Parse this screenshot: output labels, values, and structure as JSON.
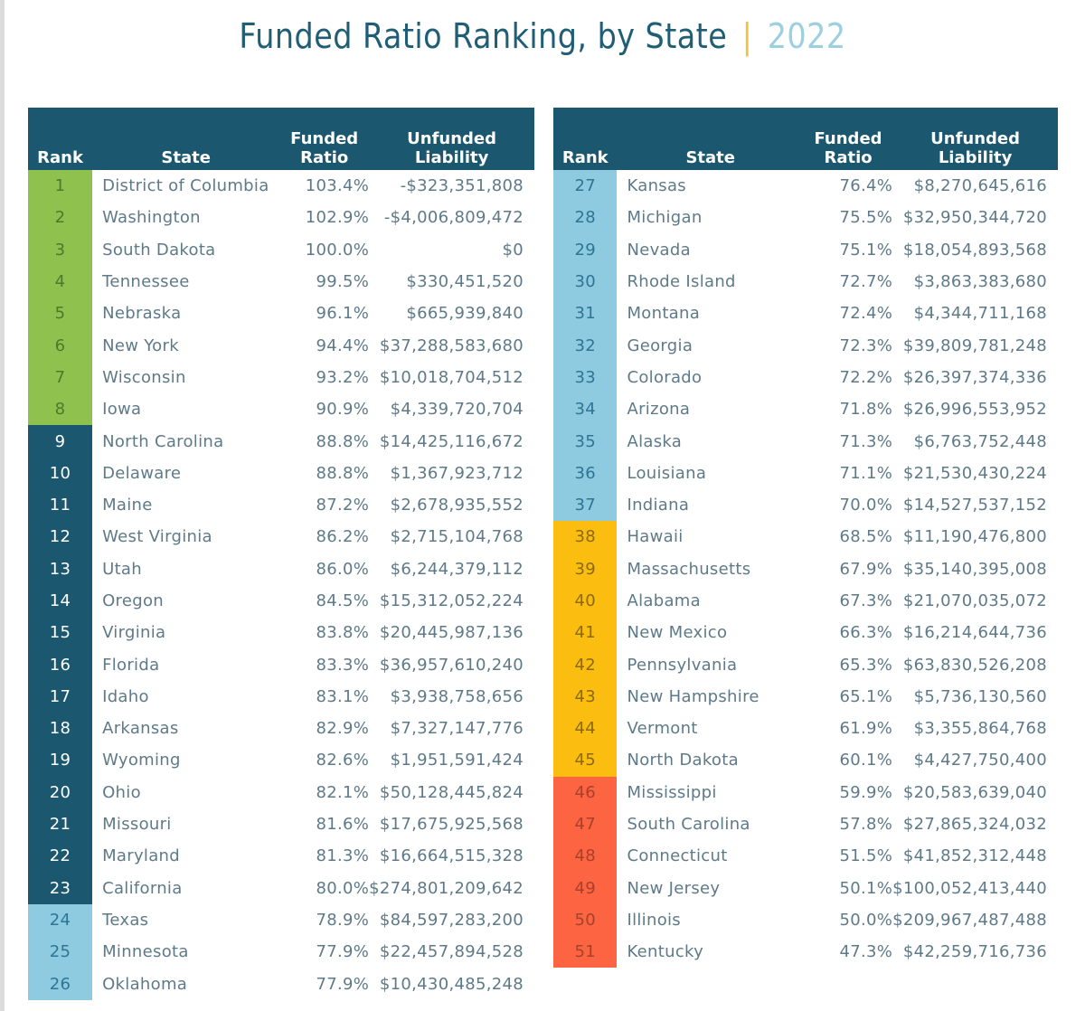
{
  "title": {
    "main": "Funded Ratio Ranking, by State",
    "separator": "|",
    "year": "2022"
  },
  "headers": {
    "rank": "Rank",
    "state": "State",
    "funded_ratio_line1": "Funded",
    "funded_ratio_line2": "Ratio",
    "unfunded_liability_line1": "Unfunded",
    "unfunded_liability_line2": "Liability"
  },
  "tier_colors": {
    "green": "#8fc14f",
    "navy": "#1b5870",
    "light_blue": "#8ecae0",
    "yellow": "#fbbd0f",
    "red": "#fd6442"
  },
  "left_table": [
    {
      "rank": "1",
      "state": "District of Columbia",
      "ratio": "103.4%",
      "liability": "-$323,351,808",
      "tier": "green"
    },
    {
      "rank": "2",
      "state": "Washington",
      "ratio": "102.9%",
      "liability": "-$4,006,809,472",
      "tier": "green"
    },
    {
      "rank": "3",
      "state": "South Dakota",
      "ratio": "100.0%",
      "liability": "$0",
      "tier": "green"
    },
    {
      "rank": "4",
      "state": "Tennessee",
      "ratio": "99.5%",
      "liability": "$330,451,520",
      "tier": "green"
    },
    {
      "rank": "5",
      "state": "Nebraska",
      "ratio": "96.1%",
      "liability": "$665,939,840",
      "tier": "green"
    },
    {
      "rank": "6",
      "state": "New York",
      "ratio": "94.4%",
      "liability": "$37,288,583,680",
      "tier": "green"
    },
    {
      "rank": "7",
      "state": "Wisconsin",
      "ratio": "93.2%",
      "liability": "$10,018,704,512",
      "tier": "green"
    },
    {
      "rank": "8",
      "state": "Iowa",
      "ratio": "90.9%",
      "liability": "$4,339,720,704",
      "tier": "green"
    },
    {
      "rank": "9",
      "state": "North Carolina",
      "ratio": "88.8%",
      "liability": "$14,425,116,672",
      "tier": "navy"
    },
    {
      "rank": "10",
      "state": "Delaware",
      "ratio": "88.8%",
      "liability": "$1,367,923,712",
      "tier": "navy"
    },
    {
      "rank": "11",
      "state": "Maine",
      "ratio": "87.2%",
      "liability": "$2,678,935,552",
      "tier": "navy"
    },
    {
      "rank": "12",
      "state": "West Virginia",
      "ratio": "86.2%",
      "liability": "$2,715,104,768",
      "tier": "navy"
    },
    {
      "rank": "13",
      "state": "Utah",
      "ratio": "86.0%",
      "liability": "$6,244,379,112",
      "tier": "navy"
    },
    {
      "rank": "14",
      "state": "Oregon",
      "ratio": "84.5%",
      "liability": "$15,312,052,224",
      "tier": "navy"
    },
    {
      "rank": "15",
      "state": "Virginia",
      "ratio": "83.8%",
      "liability": "$20,445,987,136",
      "tier": "navy"
    },
    {
      "rank": "16",
      "state": "Florida",
      "ratio": "83.3%",
      "liability": "$36,957,610,240",
      "tier": "navy"
    },
    {
      "rank": "17",
      "state": "Idaho",
      "ratio": "83.1%",
      "liability": "$3,938,758,656",
      "tier": "navy"
    },
    {
      "rank": "18",
      "state": "Arkansas",
      "ratio": "82.9%",
      "liability": "$7,327,147,776",
      "tier": "navy"
    },
    {
      "rank": "19",
      "state": "Wyoming",
      "ratio": "82.6%",
      "liability": "$1,951,591,424",
      "tier": "navy"
    },
    {
      "rank": "20",
      "state": "Ohio",
      "ratio": "82.1%",
      "liability": "$50,128,445,824",
      "tier": "navy"
    },
    {
      "rank": "21",
      "state": "Missouri",
      "ratio": "81.6%",
      "liability": "$17,675,925,568",
      "tier": "navy"
    },
    {
      "rank": "22",
      "state": "Maryland",
      "ratio": "81.3%",
      "liability": "$16,664,515,328",
      "tier": "navy"
    },
    {
      "rank": "23",
      "state": "California",
      "ratio": "80.0%",
      "liability": "$274,801,209,642",
      "tier": "navy"
    },
    {
      "rank": "24",
      "state": "Texas",
      "ratio": "78.9%",
      "liability": "$84,597,283,200",
      "tier": "light"
    },
    {
      "rank": "25",
      "state": "Minnesota",
      "ratio": "77.9%",
      "liability": "$22,457,894,528",
      "tier": "light"
    },
    {
      "rank": "26",
      "state": "Oklahoma",
      "ratio": "77.9%",
      "liability": "$10,430,485,248",
      "tier": "light"
    }
  ],
  "right_table": [
    {
      "rank": "27",
      "state": "Kansas",
      "ratio": "76.4%",
      "liability": "$8,270,645,616",
      "tier": "light"
    },
    {
      "rank": "28",
      "state": "Michigan",
      "ratio": "75.5%",
      "liability": "$32,950,344,720",
      "tier": "light"
    },
    {
      "rank": "29",
      "state": "Nevada",
      "ratio": "75.1%",
      "liability": "$18,054,893,568",
      "tier": "light"
    },
    {
      "rank": "30",
      "state": "Rhode Island",
      "ratio": "72.7%",
      "liability": "$3,863,383,680",
      "tier": "light"
    },
    {
      "rank": "31",
      "state": "Montana",
      "ratio": "72.4%",
      "liability": "$4,344,711,168",
      "tier": "light"
    },
    {
      "rank": "32",
      "state": "Georgia",
      "ratio": "72.3%",
      "liability": "$39,809,781,248",
      "tier": "light"
    },
    {
      "rank": "33",
      "state": "Colorado",
      "ratio": "72.2%",
      "liability": "$26,397,374,336",
      "tier": "light"
    },
    {
      "rank": "34",
      "state": "Arizona",
      "ratio": "71.8%",
      "liability": "$26,996,553,952",
      "tier": "light"
    },
    {
      "rank": "35",
      "state": "Alaska",
      "ratio": "71.3%",
      "liability": "$6,763,752,448",
      "tier": "light"
    },
    {
      "rank": "36",
      "state": "Louisiana",
      "ratio": "71.1%",
      "liability": "$21,530,430,224",
      "tier": "light"
    },
    {
      "rank": "37",
      "state": "Indiana",
      "ratio": "70.0%",
      "liability": "$14,527,537,152",
      "tier": "light"
    },
    {
      "rank": "38",
      "state": "Hawaii",
      "ratio": "68.5%",
      "liability": "$11,190,476,800",
      "tier": "yellow"
    },
    {
      "rank": "39",
      "state": "Massachusetts",
      "ratio": "67.9%",
      "liability": "$35,140,395,008",
      "tier": "yellow"
    },
    {
      "rank": "40",
      "state": "Alabama",
      "ratio": "67.3%",
      "liability": "$21,070,035,072",
      "tier": "yellow"
    },
    {
      "rank": "41",
      "state": "New Mexico",
      "ratio": "66.3%",
      "liability": "$16,214,644,736",
      "tier": "yellow"
    },
    {
      "rank": "42",
      "state": "Pennsylvania",
      "ratio": "65.3%",
      "liability": "$63,830,526,208",
      "tier": "yellow"
    },
    {
      "rank": "43",
      "state": "New Hampshire",
      "ratio": "65.1%",
      "liability": "$5,736,130,560",
      "tier": "yellow"
    },
    {
      "rank": "44",
      "state": "Vermont",
      "ratio": "61.9%",
      "liability": "$3,355,864,768",
      "tier": "yellow"
    },
    {
      "rank": "45",
      "state": "North Dakota",
      "ratio": "60.1%",
      "liability": "$4,427,750,400",
      "tier": "yellow"
    },
    {
      "rank": "46",
      "state": "Mississippi",
      "ratio": "59.9%",
      "liability": "$20,583,639,040",
      "tier": "red"
    },
    {
      "rank": "47",
      "state": "South Carolina",
      "ratio": "57.8%",
      "liability": "$27,865,324,032",
      "tier": "red"
    },
    {
      "rank": "48",
      "state": "Connecticut",
      "ratio": "51.5%",
      "liability": "$41,852,312,448",
      "tier": "red"
    },
    {
      "rank": "49",
      "state": "New Jersey",
      "ratio": "50.1%",
      "liability": "$100,052,413,440",
      "tier": "red"
    },
    {
      "rank": "50",
      "state": "Illinois",
      "ratio": "50.0%",
      "liability": "$209,967,487,488",
      "tier": "red"
    },
    {
      "rank": "51",
      "state": "Kentucky",
      "ratio": "47.3%",
      "liability": "$42,259,716,736",
      "tier": "red"
    }
  ]
}
